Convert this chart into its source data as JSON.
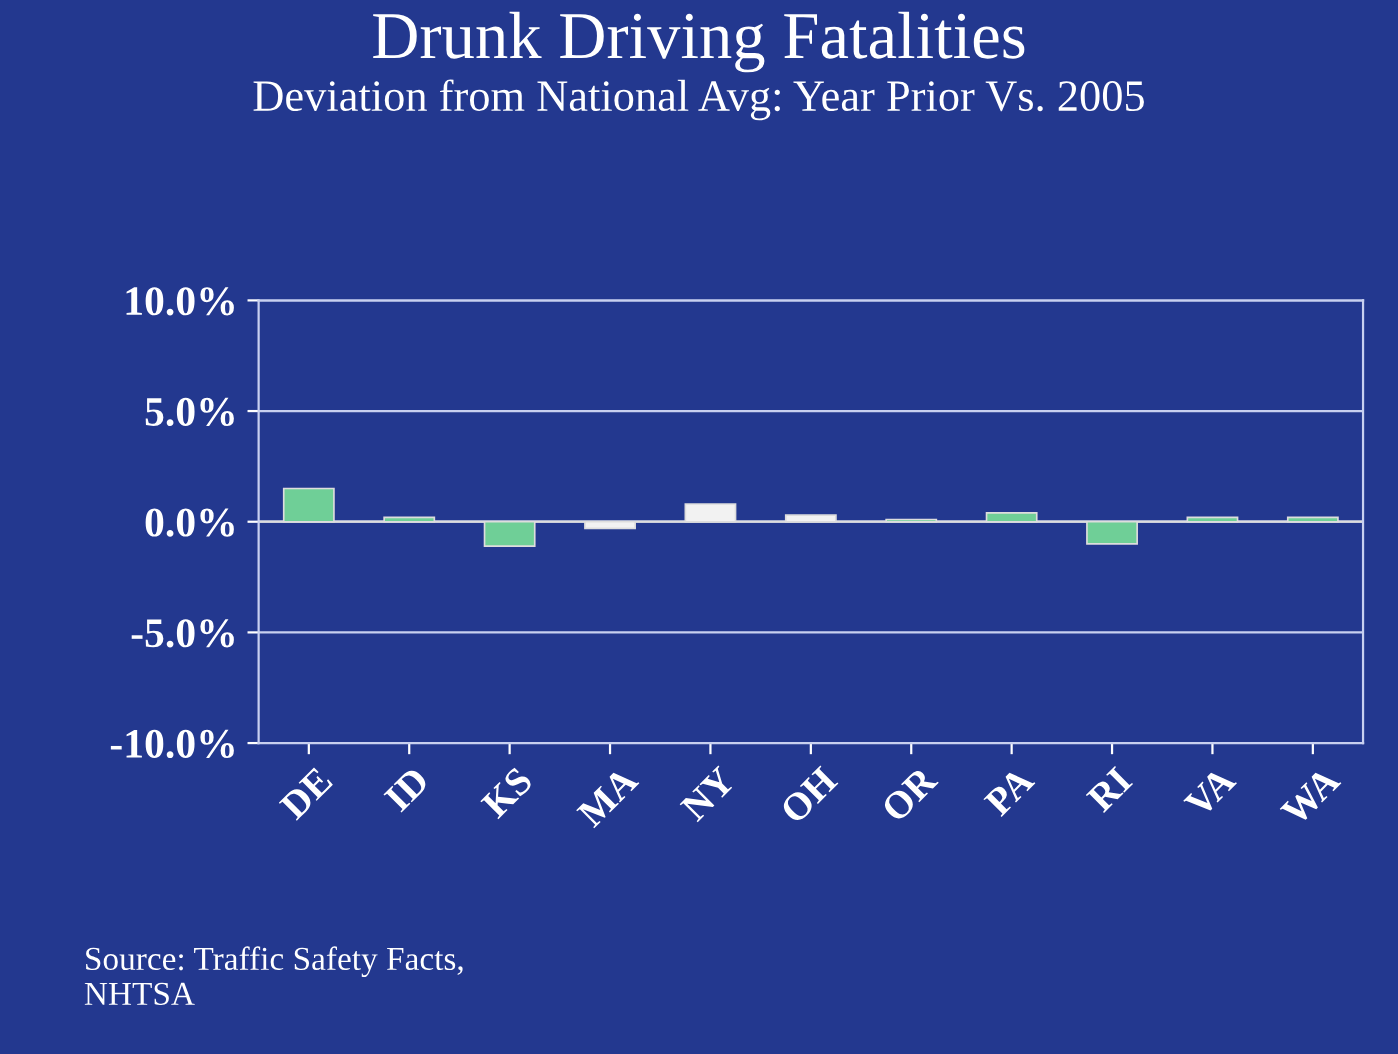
{
  "chart_data": {
    "type": "bar",
    "title": "Drunk Driving Fatalities",
    "subtitle": "Deviation from National Avg: Year Prior Vs. 2005",
    "categories": [
      "DE",
      "ID",
      "KS",
      "MA",
      "NY",
      "OH",
      "OR",
      "PA",
      "RI",
      "VA",
      "WA"
    ],
    "values": [
      1.5,
      0.2,
      -1.1,
      -0.3,
      0.8,
      0.3,
      0.1,
      0.4,
      -1.0,
      0.2,
      0.2
    ],
    "colors": [
      "#6fcf97",
      "#6fcf97",
      "#6fcf97",
      "#f2f2f2",
      "#f2f2f2",
      "#f2f2f2",
      "#6fcf97",
      "#6fcf97",
      "#6fcf97",
      "#6fcf97",
      "#6fcf97"
    ],
    "ylim": [
      -10,
      10
    ],
    "yticks": [
      {
        "value": -10,
        "label": "-10.0%"
      },
      {
        "value": -5,
        "label": "-5.0%"
      },
      {
        "value": 0,
        "label": "0.0%"
      },
      {
        "value": 5,
        "label": "5.0%"
      },
      {
        "value": 10,
        "label": "10.0%"
      }
    ],
    "grid": "y",
    "legend": false,
    "annotations": [
      "Source: Traffic Safety Facts,\nNHTSA"
    ]
  }
}
